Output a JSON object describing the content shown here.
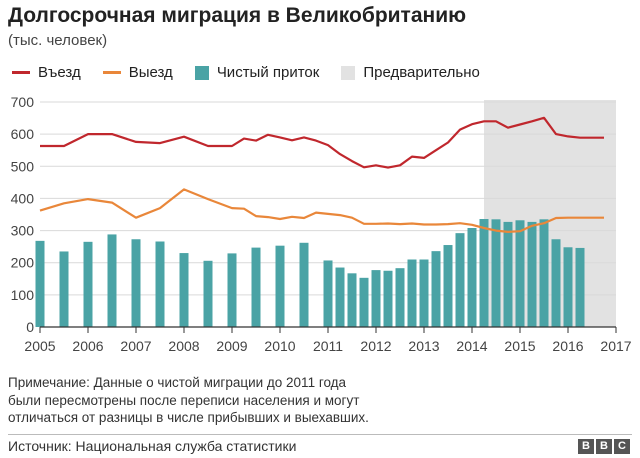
{
  "header": {
    "title": "Долгосрочная миграция в Великобританию",
    "subtitle": "(тыс. человек)"
  },
  "legend": {
    "inflow": "Въезд",
    "outflow": "Выезд",
    "net": "Чистый приток",
    "provisional": "Предварительно"
  },
  "colors": {
    "inflow": "#c0272d",
    "outflow": "#e9873a",
    "net": "#4aa3a5",
    "provisional": "#e2e2e2",
    "grid": "#d9d9d9",
    "axis": "#333333"
  },
  "chart_data": {
    "type": "bar",
    "title": "Долгосрочная миграция в Великобританию",
    "ylabel": "тыс. человек",
    "ylim": [
      0,
      700
    ],
    "yticks": [
      0,
      100,
      200,
      300,
      400,
      500,
      600,
      700
    ],
    "xlim": [
      2005,
      2017
    ],
    "xticks": [
      "2005",
      "2006",
      "2007",
      "2008",
      "2009",
      "2010",
      "2011",
      "2012",
      "2013",
      "2014",
      "2015",
      "2016",
      "2017"
    ],
    "provisional_range": [
      2014.25,
      2017
    ],
    "series": [
      {
        "name": "Въезд",
        "type": "line",
        "x": [
          2005.0,
          2005.5,
          2006.0,
          2006.5,
          2007.0,
          2007.5,
          2008.0,
          2008.5,
          2009.0,
          2009.25,
          2009.5,
          2009.75,
          2010.0,
          2010.25,
          2010.5,
          2010.75,
          2011.0,
          2011.25,
          2011.5,
          2011.75,
          2012.0,
          2012.25,
          2012.5,
          2012.75,
          2013.0,
          2013.25,
          2013.5,
          2013.75,
          2014.0,
          2014.25,
          2014.5,
          2014.75,
          2015.0,
          2015.25,
          2015.5,
          2015.75,
          2016.0,
          2016.25,
          2016.5,
          2016.75
        ],
        "values": [
          563,
          563,
          600,
          600,
          576,
          572,
          592,
          563,
          563,
          586,
          580,
          598,
          590,
          581,
          590,
          580,
          566,
          538,
          516,
          497,
          503,
          496,
          503,
          530,
          526,
          550,
          574,
          614,
          631,
          640,
          640,
          620,
          630,
          640,
          651,
          600,
          593,
          589,
          589,
          589
        ]
      },
      {
        "name": "Выезд",
        "type": "line",
        "x": [
          2005.0,
          2005.5,
          2006.0,
          2006.5,
          2007.0,
          2007.5,
          2008.0,
          2008.5,
          2009.0,
          2009.25,
          2009.5,
          2009.75,
          2010.0,
          2010.25,
          2010.5,
          2010.75,
          2011.0,
          2011.25,
          2011.5,
          2011.75,
          2012.0,
          2012.25,
          2012.5,
          2012.75,
          2013.0,
          2013.25,
          2013.5,
          2013.75,
          2014.0,
          2014.25,
          2014.5,
          2014.75,
          2015.0,
          2015.25,
          2015.5,
          2015.75,
          2016.0,
          2016.25,
          2016.5,
          2016.75
        ],
        "values": [
          362,
          385,
          398,
          387,
          340,
          370,
          428,
          398,
          370,
          368,
          345,
          342,
          336,
          343,
          339,
          356,
          352,
          348,
          340,
          321,
          321,
          322,
          320,
          322,
          319,
          319,
          320,
          323,
          318,
          308,
          300,
          296,
          298,
          315,
          323,
          339,
          340,
          340,
          340,
          340
        ]
      },
      {
        "name": "Чистый приток",
        "type": "bar",
        "x": [
          2005.0,
          2005.5,
          2006.0,
          2006.5,
          2007.0,
          2007.5,
          2008.0,
          2008.5,
          2009.0,
          2009.5,
          2010.0,
          2010.5,
          2011.0,
          2011.25,
          2011.5,
          2011.75,
          2012.0,
          2012.25,
          2012.5,
          2012.75,
          2013.0,
          2013.25,
          2013.5,
          2013.75,
          2014.0,
          2014.25,
          2014.5,
          2014.75,
          2015.0,
          2015.25,
          2015.5,
          2015.75,
          2016.0,
          2016.25
        ],
        "values": [
          268,
          235,
          265,
          288,
          273,
          266,
          230,
          206,
          229,
          247,
          253,
          262,
          207,
          185,
          167,
          153,
          177,
          175,
          183,
          210,
          210,
          236,
          255,
          292,
          308,
          336,
          335,
          327,
          332,
          327,
          335,
          273,
          248,
          246
        ]
      }
    ]
  },
  "footer": {
    "note_lines": [
      "Примечание: Данные о чистой миграции до 2011 года",
      "были пересмотрены после переписи населения и могут",
      "отличаться от разницы в числе прибывших и выехавших."
    ],
    "source": "Источник: Национальная служба статистики",
    "logo_letters": [
      "B",
      "B",
      "C"
    ]
  }
}
